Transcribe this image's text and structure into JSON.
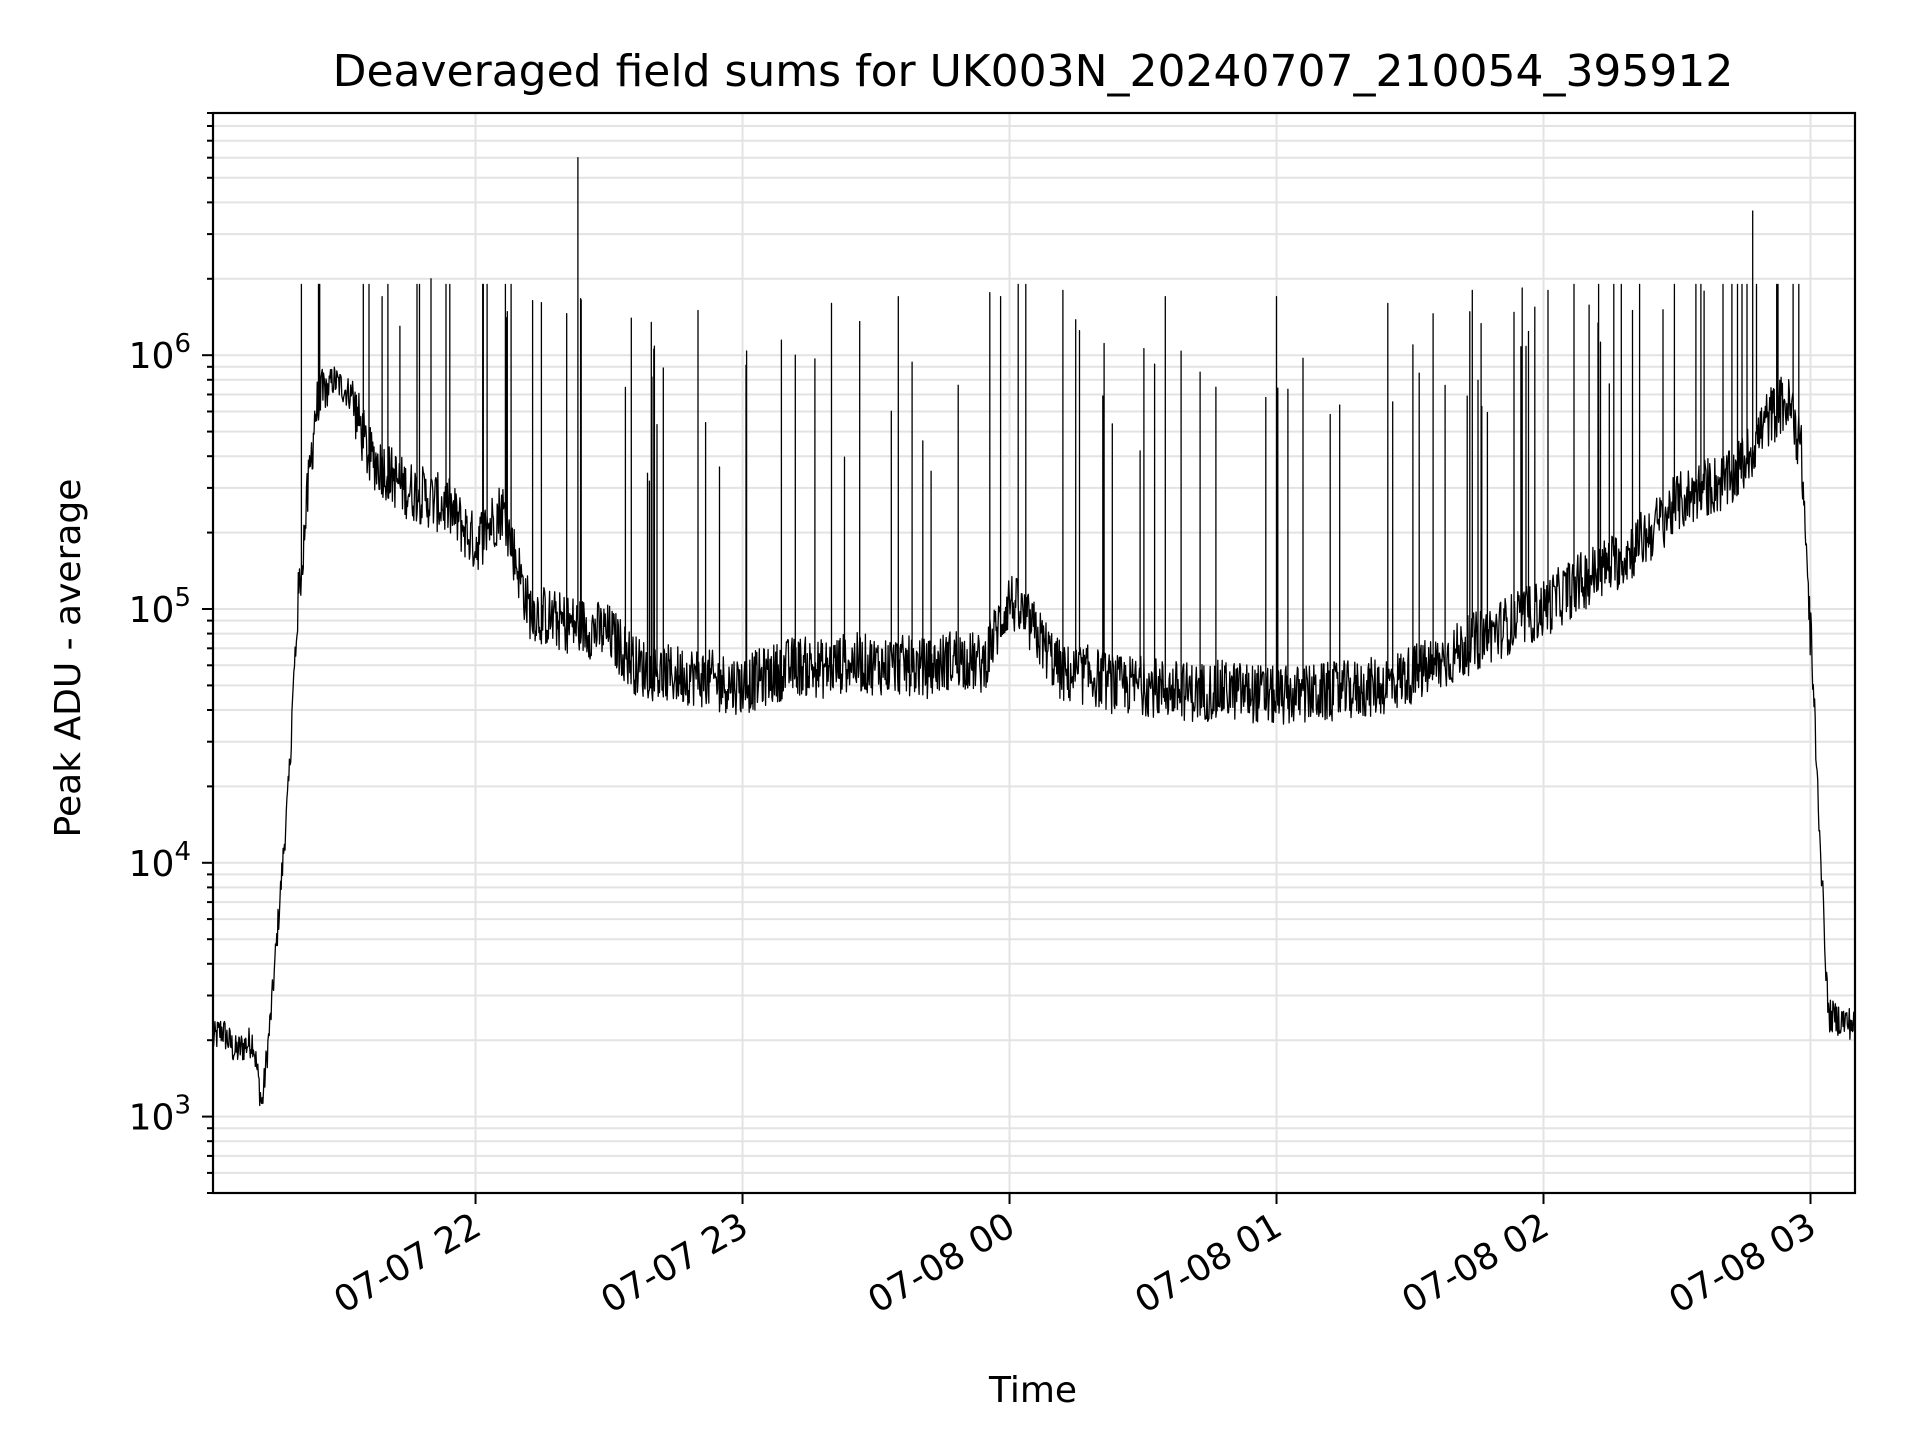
{
  "chart_data": {
    "type": "line",
    "title": "Deaveraged field sums for UK003N_20240707_210054_395912",
    "xlabel": "Time",
    "ylabel": "Peak ADU - average",
    "yscale": "log",
    "ylim": [
      500,
      9000000
    ],
    "xlim": [
      "2024-07-07 21:01:00",
      "2024-07-08 03:10:00"
    ],
    "grid": true,
    "legend": "none",
    "line_color": "#000000",
    "x_ticks": [
      {
        "value": "2024-07-07 22:00",
        "label": "07-07 22"
      },
      {
        "value": "2024-07-07 23:00",
        "label": "07-07 23"
      },
      {
        "value": "2024-07-08 00:00",
        "label": "07-08 00"
      },
      {
        "value": "2024-07-08 01:00",
        "label": "07-08 01"
      },
      {
        "value": "2024-07-08 02:00",
        "label": "07-08 02"
      },
      {
        "value": "2024-07-08 03:00",
        "label": "07-08 03"
      }
    ],
    "y_ticks": [
      {
        "value": 1000,
        "base": "10",
        "exp": "3"
      },
      {
        "value": 10000,
        "base": "10",
        "exp": "4"
      },
      {
        "value": 100000,
        "base": "10",
        "exp": "5"
      },
      {
        "value": 1000000,
        "base": "10",
        "exp": "6"
      }
    ],
    "series": [
      {
        "x": [
          "2024-07-07 21:01",
          "2024-07-07 21:03",
          "2024-07-07 21:06",
          "2024-07-07 21:08",
          "2024-07-07 21:10",
          "2024-07-07 21:12",
          "2024-07-07 21:14",
          "2024-07-07 21:16",
          "2024-07-07 21:18",
          "2024-07-07 21:20",
          "2024-07-07 21:24",
          "2024-07-07 21:28",
          "2024-07-07 21:32",
          "2024-07-07 21:36",
          "2024-07-07 21:40",
          "2024-07-07 21:44",
          "2024-07-07 21:48",
          "2024-07-07 21:54",
          "2024-07-07 22:00",
          "2024-07-07 22:06",
          "2024-07-07 22:12",
          "2024-07-07 22:18",
          "2024-07-07 22:24",
          "2024-07-07 22:30",
          "2024-07-07 22:36",
          "2024-07-07 22:42",
          "2024-07-07 22:48",
          "2024-07-07 22:54",
          "2024-07-07 23:00",
          "2024-07-07 23:06",
          "2024-07-07 23:12",
          "2024-07-07 23:18",
          "2024-07-07 23:24",
          "2024-07-07 23:30",
          "2024-07-07 23:36",
          "2024-07-07 23:42",
          "2024-07-07 23:48",
          "2024-07-07 23:54",
          "2024-07-08 00:00",
          "2024-07-08 00:06",
          "2024-07-08 00:12",
          "2024-07-08 00:18",
          "2024-07-08 00:24",
          "2024-07-08 00:30",
          "2024-07-08 00:36",
          "2024-07-08 00:42",
          "2024-07-08 00:48",
          "2024-07-08 00:54",
          "2024-07-08 01:00",
          "2024-07-08 01:06",
          "2024-07-08 01:12",
          "2024-07-08 01:18",
          "2024-07-08 01:24",
          "2024-07-08 01:30",
          "2024-07-08 01:36",
          "2024-07-08 01:42",
          "2024-07-08 01:48",
          "2024-07-08 01:54",
          "2024-07-08 02:00",
          "2024-07-08 02:06",
          "2024-07-08 02:12",
          "2024-07-08 02:18",
          "2024-07-08 02:24",
          "2024-07-08 02:30",
          "2024-07-08 02:36",
          "2024-07-08 02:42",
          "2024-07-08 02:46",
          "2024-07-08 02:50",
          "2024-07-08 02:54",
          "2024-07-08 02:56",
          "2024-07-08 02:58",
          "2024-07-08 03:00",
          "2024-07-08 03:04",
          "2024-07-08 03:10"
        ],
        "y": [
          2000,
          2200,
          1800,
          1900,
          2000,
          1100,
          2500,
          7000,
          20000,
          100000,
          600000,
          800000,
          700000,
          400000,
          350000,
          300000,
          280000,
          250000,
          180000,
          250000,
          100000,
          90000,
          85000,
          80000,
          60000,
          55000,
          55000,
          52000,
          50000,
          55000,
          60000,
          58000,
          62000,
          60000,
          60000,
          58000,
          65000,
          60000,
          110000,
          80000,
          55000,
          55000,
          50000,
          50000,
          48000,
          47000,
          48000,
          47000,
          45000,
          46000,
          47000,
          48000,
          50000,
          55000,
          60000,
          70000,
          80000,
          90000,
          100000,
          120000,
          140000,
          160000,
          200000,
          260000,
          300000,
          320000,
          400000,
          550000,
          650000,
          600000,
          400000,
          80000,
          2500,
          2300
        ],
        "spikes": [
          {
            "x": "2024-07-07 21:39",
            "y": 1700000
          },
          {
            "x": "2024-07-07 21:43",
            "y": 1300000
          },
          {
            "x": "2024-07-07 21:50",
            "y": 2000000
          },
          {
            "x": "2024-07-07 22:08",
            "y": 1900000
          },
          {
            "x": "2024-07-07 22:23",
            "y": 6000000
          },
          {
            "x": "2024-07-07 22:35",
            "y": 1400000
          },
          {
            "x": "2024-07-07 22:50",
            "y": 1500000
          },
          {
            "x": "2024-07-07 23:20",
            "y": 1600000
          },
          {
            "x": "2024-07-07 23:35",
            "y": 1700000
          },
          {
            "x": "2024-07-07 23:58",
            "y": 1700000
          },
          {
            "x": "2024-07-08 00:12",
            "y": 1800000
          },
          {
            "x": "2024-07-08 00:35",
            "y": 1700000
          },
          {
            "x": "2024-07-08 01:00",
            "y": 1700000
          },
          {
            "x": "2024-07-08 01:25",
            "y": 1600000
          },
          {
            "x": "2024-07-08 01:44",
            "y": 1800000
          },
          {
            "x": "2024-07-08 02:01",
            "y": 1800000
          },
          {
            "x": "2024-07-08 02:20",
            "y": 1500000
          },
          {
            "x": "2024-07-08 02:47",
            "y": 3700000
          }
        ]
      }
    ]
  }
}
